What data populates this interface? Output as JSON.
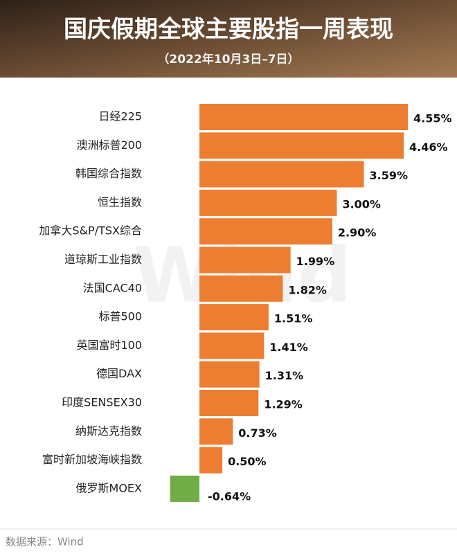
{
  "chart_data": {
    "type": "bar",
    "orientation": "horizontal",
    "title": "国庆假期全球主要股指一周表现",
    "subtitle": "（2022年10月3日–7日）",
    "categories": [
      "日经225",
      "澳洲标普200",
      "韩国综合指数",
      "恒生指数",
      "加拿大S&P/TSX综合",
      "道琼斯工业指数",
      "法国CAC40",
      "标普500",
      "英国富时100",
      "德国DAX",
      "印度SENSEX30",
      "纳斯达克指数",
      "富时新加坡海峡指数",
      "俄罗斯MOEX"
    ],
    "values": [
      4.55,
      4.46,
      3.59,
      3.0,
      2.9,
      1.99,
      1.82,
      1.51,
      1.41,
      1.31,
      1.29,
      0.73,
      0.5,
      -0.64
    ],
    "value_labels": [
      "4.55%",
      "4.46%",
      "3.59%",
      "3.00%",
      "2.90%",
      "1.99%",
      "1.82%",
      "1.51%",
      "1.41%",
      "1.31%",
      "1.29%",
      "0.73%",
      "0.50%",
      "-0.64%"
    ],
    "color": "#ed7d31",
    "negative_color": "#70ad47",
    "watermark": "Wind",
    "source": "数据来源：Wind"
  }
}
